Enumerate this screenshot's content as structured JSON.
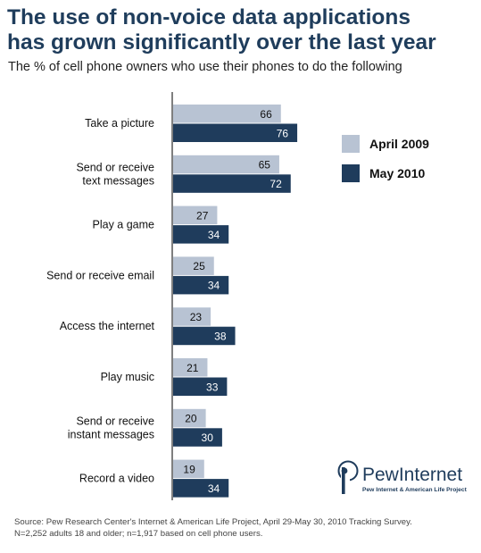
{
  "title_lines": [
    "The use of non-voice data applications",
    "has grown significantly over the last year"
  ],
  "subtitle": "The % of cell phone owners who use their phones to do the following",
  "logo": {
    "brand": "PewInternet",
    "tagline": "Pew Internet & American Life Project"
  },
  "source_lines": [
    "Source: Pew Research Center's Internet & American Life Project, April 29-May 30, 2010 Tracking Survey.",
    "N=2,252 adults 18 and older; n=1,917 based on cell phone users."
  ],
  "chart_data": {
    "type": "bar",
    "orientation": "horizontal",
    "title": "The use of non-voice data applications has grown significantly over the last year",
    "subtitle": "The % of cell phone owners who use their phones to do the following",
    "categories": [
      [
        "Take a picture"
      ],
      [
        "Send or receive",
        "text messages"
      ],
      [
        "Play a game"
      ],
      [
        "Send or receive email"
      ],
      [
        "Access the internet"
      ],
      [
        "Play music"
      ],
      [
        "Send or receive",
        "instant messages"
      ],
      [
        "Record a video"
      ]
    ],
    "series": [
      {
        "name": "April 2009",
        "color": "#b8c3d3",
        "label_color": "#111111",
        "values": [
          66,
          65,
          27,
          25,
          23,
          21,
          20,
          19
        ]
      },
      {
        "name": "May 2010",
        "color": "#1f3c5c",
        "label_color": "#ffffff",
        "values": [
          76,
          72,
          34,
          34,
          38,
          33,
          30,
          34
        ]
      }
    ],
    "legend": "right",
    "grid": false
  }
}
